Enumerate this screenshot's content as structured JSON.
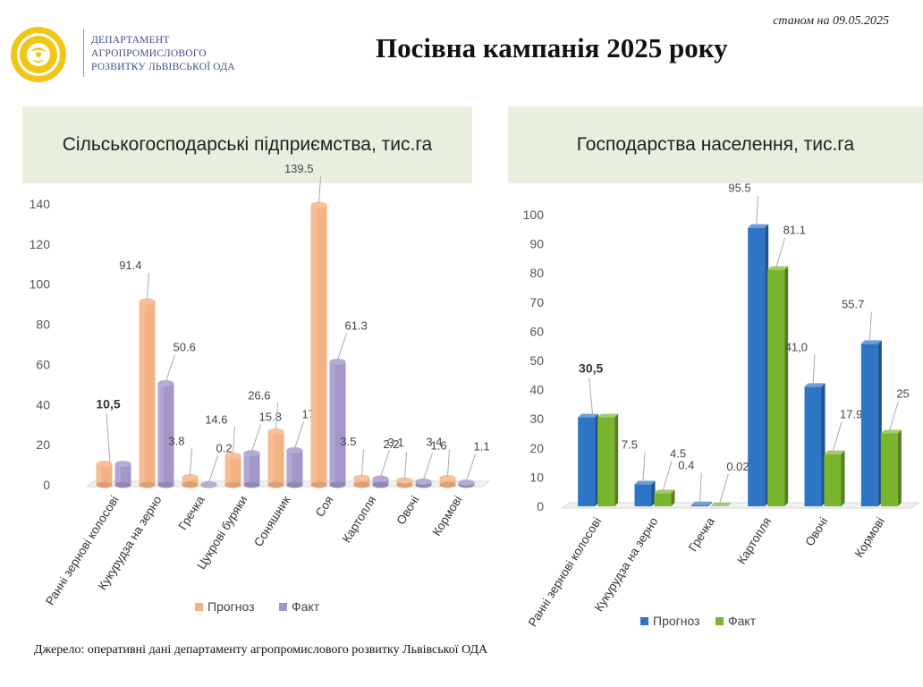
{
  "header": {
    "dept_lines": [
      "ДЕПАРТАМЕНТ",
      "АГРОПРОМИСЛОВОГО",
      "РОЗВИТКУ ЛЬВІВСЬКОЇ ОДА"
    ],
    "date": "станом на 09.05.2025",
    "title": "Посівна кампанія 2025 року"
  },
  "colors": {
    "brand_yellow": "#f3c517",
    "header_panel_bg": "#e9efdf",
    "left_forecast": "#f4b183",
    "left_fact": "#a397c9",
    "right_forecast": "#2e75c6",
    "right_fact": "#7ab52e"
  },
  "chart_data": [
    {
      "type": "bar",
      "title": "Сільськогосподарські підприємства, тис.га",
      "categories": [
        "Ранні зернові колосові",
        "Кукурудза на зерно",
        "Гречка",
        "Цукрові буряки",
        "Соняшник",
        "Соя",
        "Картопля",
        "Овочі",
        "Кормові"
      ],
      "series": [
        {
          "name": "Прогноз",
          "values": [
            10.5,
            91.4,
            3.8,
            14.6,
            26.6,
            139.5,
            3.5,
            2.2,
            3.4
          ],
          "labels": [
            "",
            "91.4",
            "3.8",
            "14.6",
            "26.6",
            "139.5",
            "3.5",
            "2.2",
            "3.4"
          ]
        },
        {
          "name": "Факт",
          "values": [
            10.5,
            50.6,
            0.2,
            15.8,
            17.2,
            61.3,
            3.1,
            1.6,
            1.1
          ],
          "labels": [
            "",
            "50.6",
            "0.2",
            "15.8",
            "17.2",
            "61.3",
            "3.1",
            "1.6",
            "1.1"
          ]
        }
      ],
      "group_labels": [
        "10,5",
        "",
        "",
        "",
        "",
        "",
        "",
        "",
        ""
      ],
      "ylim": [
        0,
        140
      ],
      "yticks": [
        "0",
        "20",
        "40",
        "60",
        "80",
        "100",
        "120",
        "140"
      ],
      "legend_position": "bottom"
    },
    {
      "type": "bar",
      "title": "Господарства населення, тис.га",
      "categories": [
        "Ранні зернові колосові",
        "Кукурудза на зерно",
        "Гречка",
        "Картопля",
        "Овочі",
        "Кормові"
      ],
      "series": [
        {
          "name": "Прогноз",
          "values": [
            30.5,
            7.5,
            0.4,
            95.5,
            41.0,
            55.7
          ],
          "labels": [
            "",
            "7.5",
            "0.4",
            "95.5",
            "41,0",
            "55.7"
          ]
        },
        {
          "name": "Факт",
          "values": [
            30.5,
            4.5,
            0.02,
            81.1,
            17.9,
            25
          ],
          "labels": [
            "",
            "4.5",
            "0.02",
            "81.1",
            "17.9",
            "25"
          ]
        }
      ],
      "group_labels": [
        "30,5",
        "",
        "",
        "",
        "",
        ""
      ],
      "ylim": [
        0,
        100
      ],
      "yticks": [
        "0",
        "10",
        "20",
        "30",
        "40",
        "50",
        "60",
        "70",
        "80",
        "90",
        "100"
      ],
      "legend_position": "bottom"
    }
  ],
  "source": "Джерело: оперативні дані департаменту агропромислового розвитку Львівської ОДА"
}
